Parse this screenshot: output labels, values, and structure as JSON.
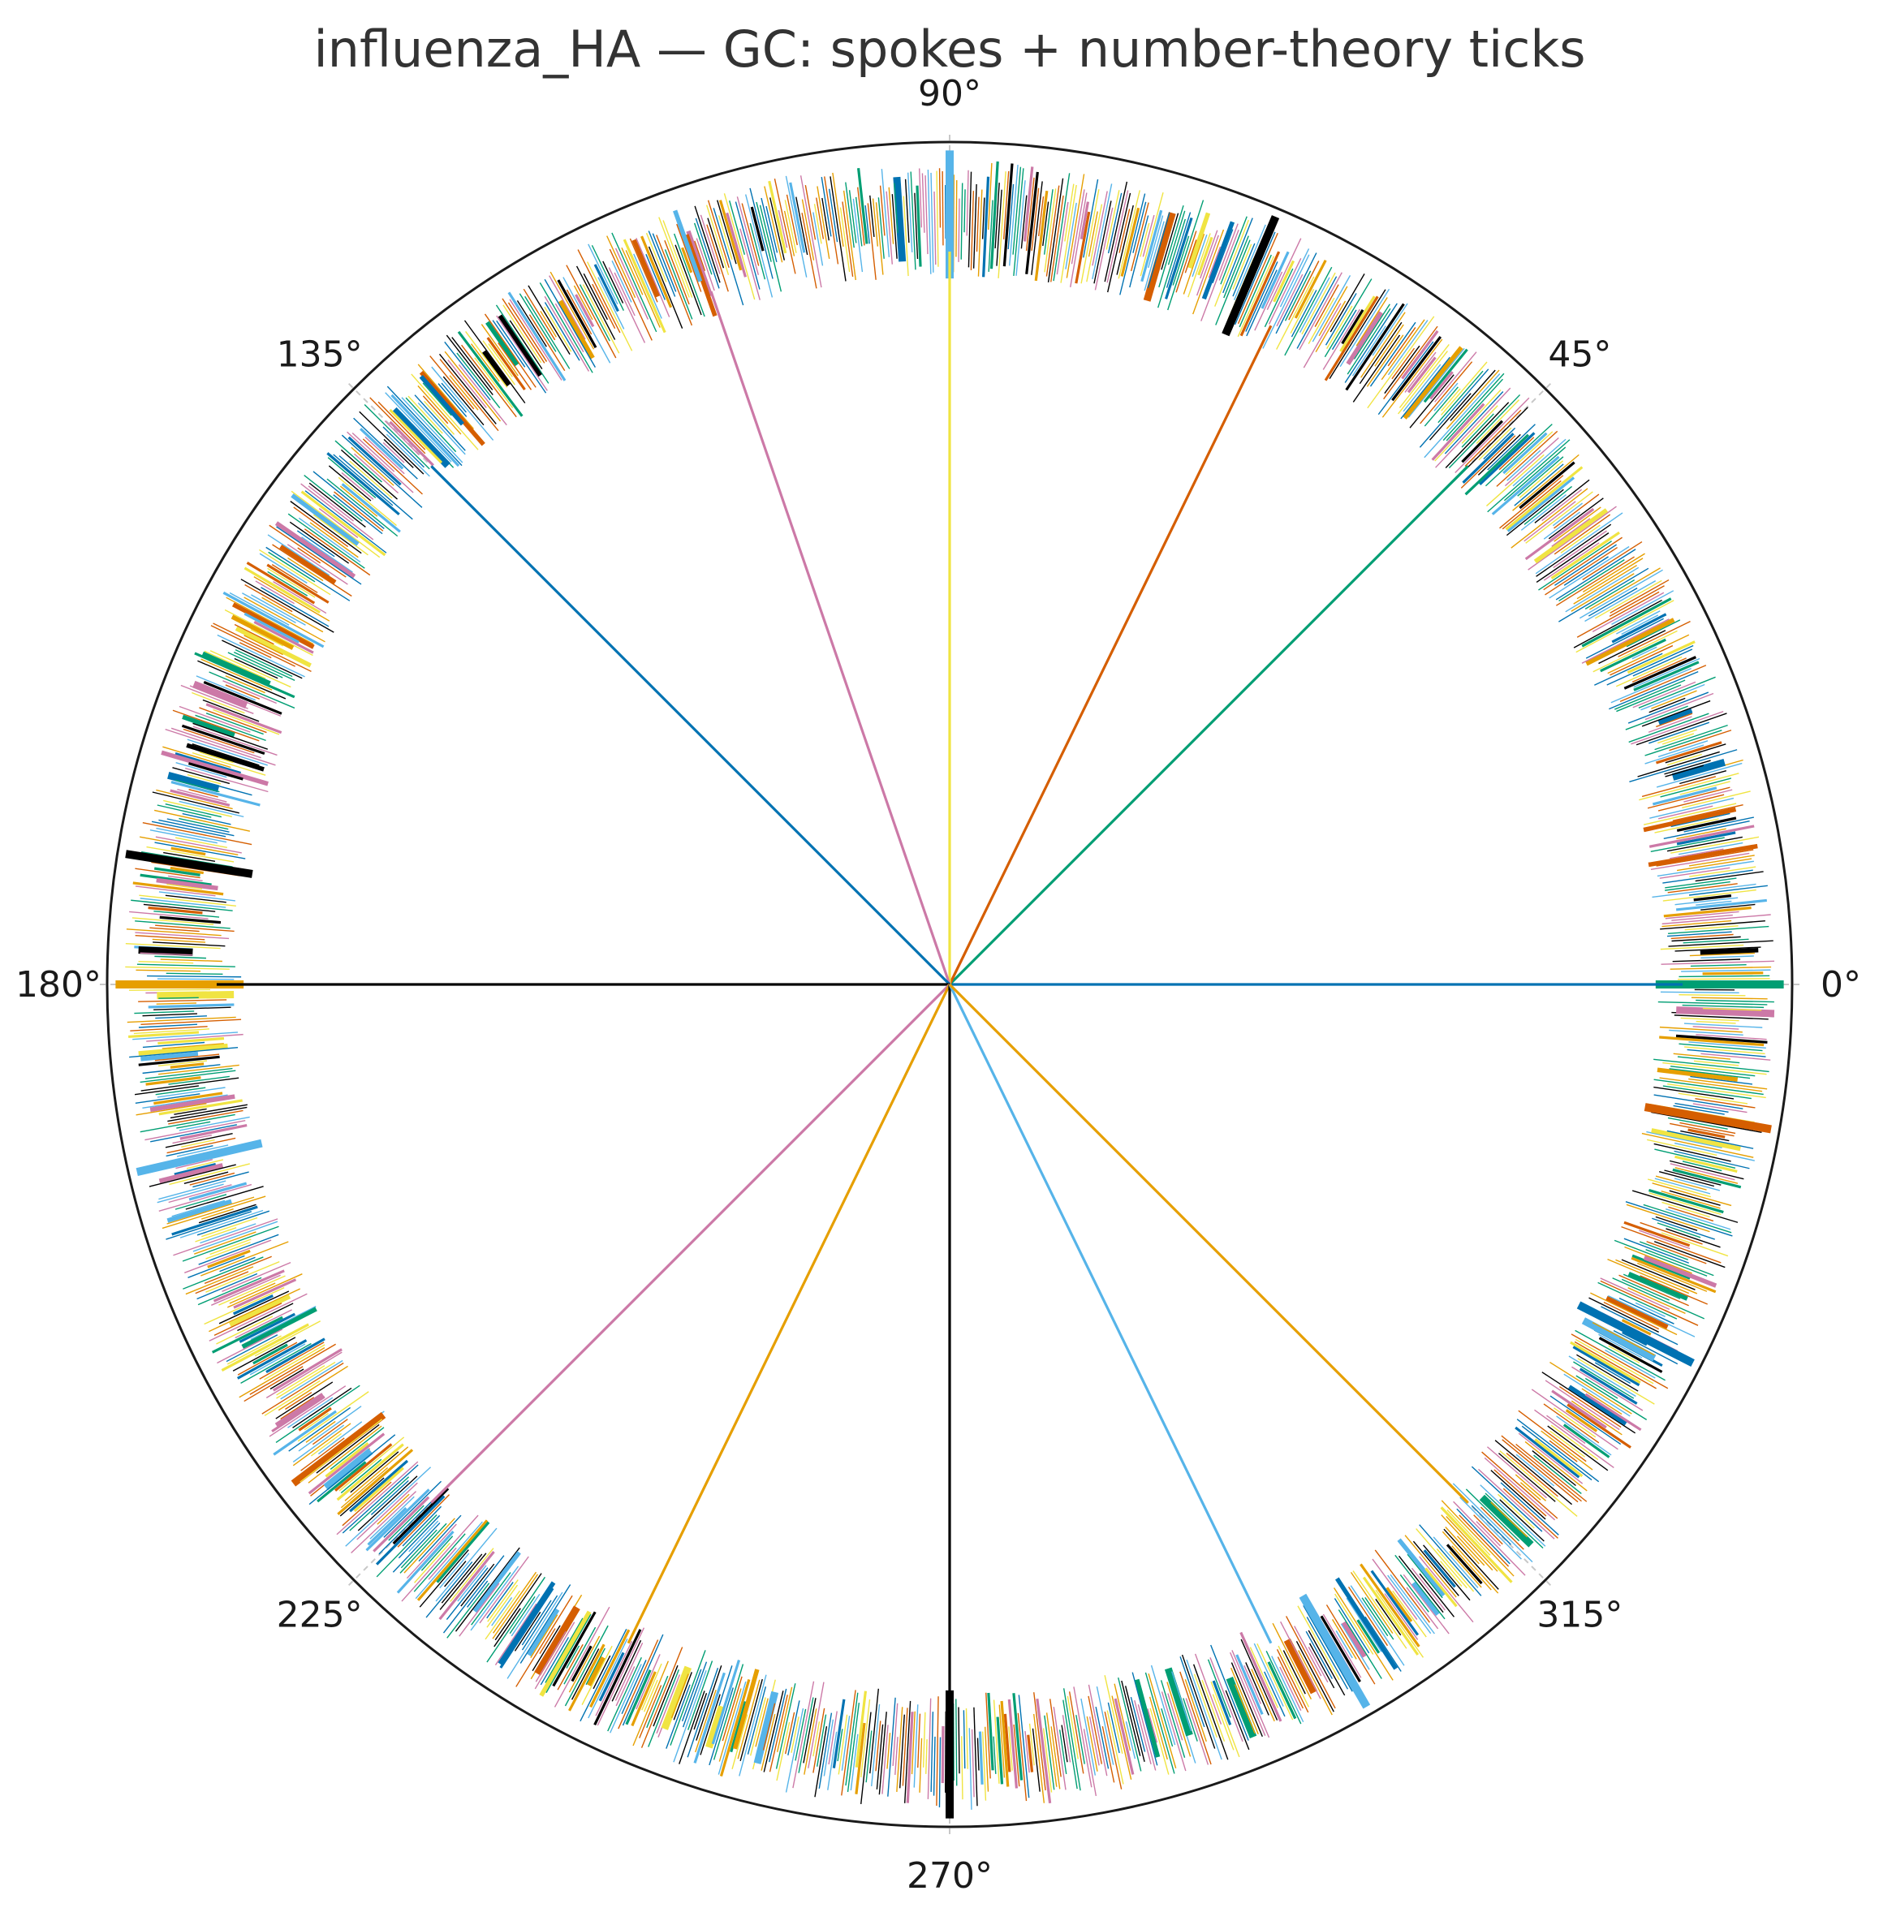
{
  "chart_data": {
    "type": "polar",
    "title": "influenza_HA — GC: spokes + number-theory ticks",
    "theta_tick_labels": [
      "0°",
      "45°",
      "90°",
      "135°",
      "180°",
      "225°",
      "270°",
      "315°"
    ],
    "theta_ticks_deg": [
      0,
      45,
      90,
      135,
      180,
      225,
      270,
      315
    ],
    "grid": true,
    "spokes": [
      {
        "angle_deg": 0,
        "color": "#0072B2"
      },
      {
        "angle_deg": 45,
        "color": "#009E73"
      },
      {
        "angle_deg": 64,
        "color": "#D55E00"
      },
      {
        "angle_deg": 90,
        "color": "#F0E442"
      },
      {
        "angle_deg": 109,
        "color": "#CC79A7"
      },
      {
        "angle_deg": 135,
        "color": "#0072B2"
      },
      {
        "angle_deg": 180,
        "color": "#000000"
      },
      {
        "angle_deg": 225,
        "color": "#CC79A7"
      },
      {
        "angle_deg": 244,
        "color": "#E69F00"
      },
      {
        "angle_deg": 270,
        "color": "#000000"
      },
      {
        "angle_deg": 296,
        "color": "#56B4E9"
      },
      {
        "angle_deg": 315,
        "color": "#E69F00"
      }
    ],
    "ticks": {
      "count": 1778,
      "palette": [
        "#000000",
        "#E69F00",
        "#56B4E9",
        "#009E73",
        "#F0E442",
        "#0072B2",
        "#D55E00",
        "#CC79A7"
      ],
      "inner_radius_range": [
        0.84,
        0.9
      ],
      "outer_radius_range": [
        0.93,
        0.98
      ],
      "highlighted": [
        {
          "angle_deg": 0,
          "color": "#009E73"
        },
        {
          "angle_deg": 90,
          "color": "#56B4E9"
        },
        {
          "angle_deg": 180,
          "color": "#E69F00"
        },
        {
          "angle_deg": 270,
          "color": "#000000"
        },
        {
          "angle_deg": 171,
          "color": "#000000"
        },
        {
          "angle_deg": 350,
          "color": "#D55E00"
        },
        {
          "angle_deg": 67,
          "color": "#000000"
        },
        {
          "angle_deg": 193,
          "color": "#56B4E9"
        },
        {
          "angle_deg": 333,
          "color": "#0072B2"
        },
        {
          "angle_deg": 300,
          "color": "#56B4E9"
        }
      ]
    }
  }
}
